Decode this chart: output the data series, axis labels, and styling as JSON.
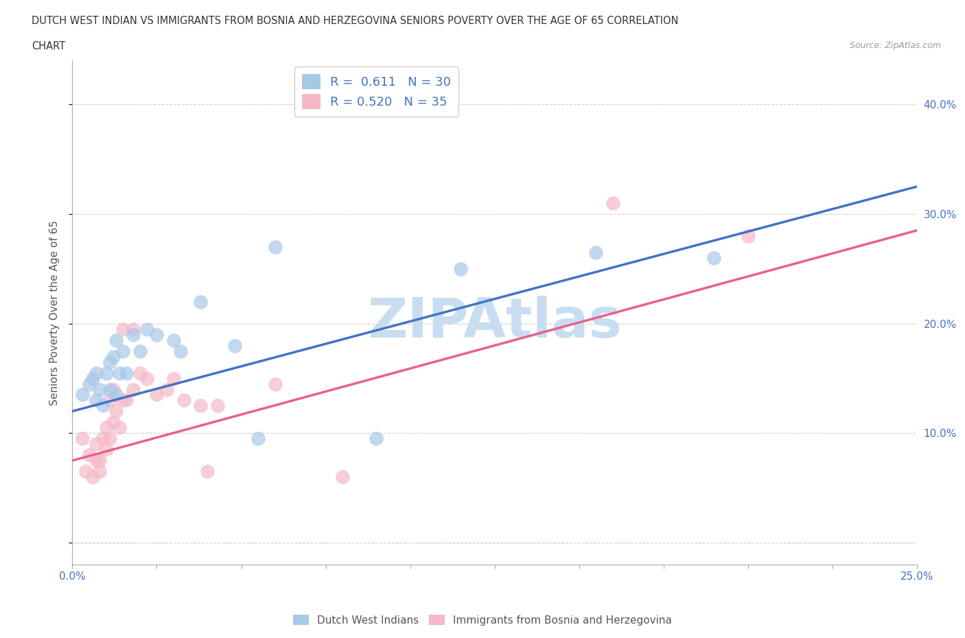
{
  "title_line1": "DUTCH WEST INDIAN VS IMMIGRANTS FROM BOSNIA AND HERZEGOVINA SENIORS POVERTY OVER THE AGE OF 65 CORRELATION",
  "title_line2": "CHART",
  "source_text": "Source: ZipAtlas.com",
  "ylabel": "Seniors Poverty Over the Age of 65",
  "xlim": [
    0.0,
    0.25
  ],
  "ylim": [
    -0.02,
    0.44
  ],
  "xticks": [
    0.0,
    0.025,
    0.05,
    0.075,
    0.1,
    0.125,
    0.15,
    0.175,
    0.2,
    0.225,
    0.25
  ],
  "xticklabels": [
    "0.0%",
    "",
    "",
    "",
    "",
    "",
    "",
    "",
    "",
    "",
    "25.0%"
  ],
  "yticks": [
    0.0,
    0.1,
    0.2,
    0.3,
    0.4
  ],
  "yticklabels": [
    "",
    "10.0%",
    "20.0%",
    "30.0%",
    "40.0%"
  ],
  "blue_color": "#a8c8e8",
  "pink_color": "#f4b8c8",
  "blue_line_color": "#4472c4",
  "pink_line_color": "#e8608a",
  "watermark_color": "#c8ddf0",
  "R_blue": 0.611,
  "N_blue": 30,
  "R_pink": 0.52,
  "N_pink": 35,
  "legend_label_blue": "Dutch West Indians",
  "legend_label_pink": "Immigrants from Bosnia and Herzegovina",
  "blue_scatter_x": [
    0.003,
    0.005,
    0.006,
    0.007,
    0.007,
    0.008,
    0.009,
    0.01,
    0.011,
    0.011,
    0.012,
    0.013,
    0.013,
    0.014,
    0.015,
    0.016,
    0.018,
    0.02,
    0.022,
    0.025,
    0.03,
    0.032,
    0.038,
    0.048,
    0.055,
    0.06,
    0.09,
    0.115,
    0.155,
    0.19
  ],
  "blue_scatter_y": [
    0.135,
    0.145,
    0.15,
    0.13,
    0.155,
    0.14,
    0.125,
    0.155,
    0.14,
    0.165,
    0.17,
    0.135,
    0.185,
    0.155,
    0.175,
    0.155,
    0.19,
    0.175,
    0.195,
    0.19,
    0.185,
    0.175,
    0.22,
    0.18,
    0.095,
    0.27,
    0.095,
    0.25,
    0.265,
    0.26
  ],
  "pink_scatter_x": [
    0.003,
    0.004,
    0.005,
    0.006,
    0.007,
    0.007,
    0.008,
    0.008,
    0.009,
    0.01,
    0.01,
    0.011,
    0.011,
    0.012,
    0.012,
    0.013,
    0.014,
    0.015,
    0.015,
    0.016,
    0.018,
    0.018,
    0.02,
    0.022,
    0.025,
    0.028,
    0.03,
    0.033,
    0.038,
    0.04,
    0.043,
    0.06,
    0.08,
    0.16,
    0.2
  ],
  "pink_scatter_y": [
    0.095,
    0.065,
    0.08,
    0.06,
    0.075,
    0.09,
    0.075,
    0.065,
    0.095,
    0.085,
    0.105,
    0.095,
    0.13,
    0.11,
    0.14,
    0.12,
    0.105,
    0.195,
    0.13,
    0.13,
    0.14,
    0.195,
    0.155,
    0.15,
    0.135,
    0.14,
    0.15,
    0.13,
    0.125,
    0.065,
    0.125,
    0.145,
    0.06,
    0.31,
    0.28
  ],
  "blue_trend_x": [
    0.0,
    0.25
  ],
  "blue_trend_y": [
    0.12,
    0.325
  ],
  "pink_trend_x": [
    0.0,
    0.25
  ],
  "pink_trend_y": [
    0.075,
    0.285
  ],
  "grid_color": "#cccccc",
  "bg_color": "#ffffff",
  "title_color": "#333333",
  "tick_label_color": "#4472c4",
  "ylabel_color": "#555555"
}
